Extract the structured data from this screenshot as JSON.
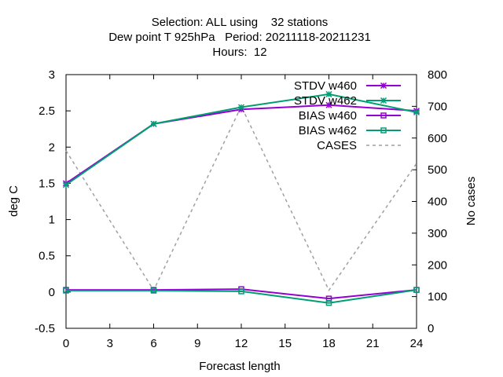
{
  "chart_data": {
    "type": "line",
    "title_lines": [
      "Selection: ALL using    32 stations",
      "Dew point T 925hPa   Period: 20211118-20211231",
      "Hours:  12"
    ],
    "xlabel": "Forecast length",
    "ylabel": "deg C",
    "y2label": "No cases",
    "xlim": [
      0,
      24
    ],
    "ylim": [
      -0.5,
      3
    ],
    "y2lim": [
      0,
      800
    ],
    "x_ticks": [
      "0",
      "3",
      "6",
      "9",
      "12",
      "15",
      "18",
      "21",
      "24"
    ],
    "y_ticks": [
      "-0.5",
      "0",
      "0.5",
      "1",
      "1.5",
      "2",
      "2.5",
      "3"
    ],
    "y2_ticks": [
      "0",
      "100",
      "200",
      "300",
      "400",
      "500",
      "600",
      "700",
      "800"
    ],
    "grid": false,
    "legend_position": "top-right",
    "x": [
      0,
      6,
      12,
      18,
      24
    ],
    "series": [
      {
        "name": "STDV w460",
        "axis": "y",
        "marker": "star",
        "dashed": false,
        "color": "#9400d3",
        "values": [
          1.5,
          2.32,
          2.52,
          2.58,
          2.5
        ]
      },
      {
        "name": "STDV w462",
        "axis": "y",
        "marker": "star",
        "dashed": false,
        "color": "#009e73",
        "values": [
          1.48,
          2.32,
          2.55,
          2.73,
          2.48
        ]
      },
      {
        "name": "BIAS w460",
        "axis": "y",
        "marker": "square",
        "dashed": false,
        "color": "#9400d3",
        "values": [
          0.03,
          0.03,
          0.04,
          -0.09,
          0.03
        ]
      },
      {
        "name": "BIAS w462",
        "axis": "y",
        "marker": "square",
        "dashed": false,
        "color": "#009e73",
        "values": [
          0.02,
          0.02,
          0.01,
          -0.15,
          0.03
        ]
      },
      {
        "name": "CASES",
        "axis": "y2",
        "marker": "none",
        "dashed": true,
        "color": "#a0a0a0",
        "values": [
          560,
          120,
          700,
          120,
          520
        ]
      }
    ]
  }
}
